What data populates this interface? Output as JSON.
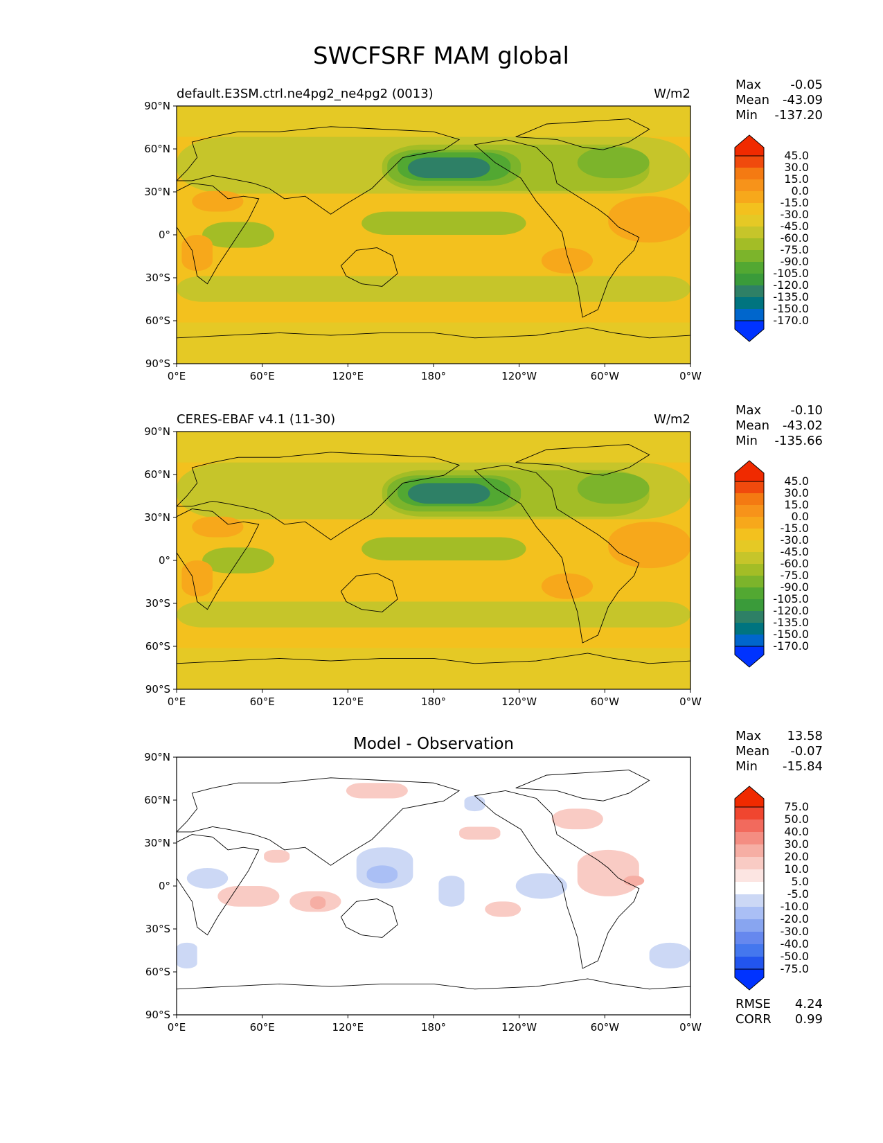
{
  "figure": {
    "title": "SWCFSRF MAM global"
  },
  "colors": {
    "main_levels": [
      "#0033ff",
      "#0066cc",
      "#00747f",
      "#2e8066",
      "#3a9b3a",
      "#52a832",
      "#7cb42b",
      "#a3bd26",
      "#c6c52a",
      "#e5c925",
      "#f3c11e",
      "#f7a81b",
      "#f7931a",
      "#f47a12",
      "#f04a0d",
      "#f02a00"
    ],
    "diff_levels": [
      "#0033ff",
      "#2255ee",
      "#4477ee",
      "#6688ee",
      "#88a5f0",
      "#aabff5",
      "#ccd8f5",
      "#e6ecfa",
      "#ffffff",
      "#fce5e2",
      "#f9cbc4",
      "#f6aea4",
      "#f48d82",
      "#f26a5d",
      "#f0462f",
      "#f02a00"
    ],
    "land_line": "#000000"
  },
  "x_ticks": [
    "0°E",
    "60°E",
    "120°E",
    "180°",
    "120°W",
    "60°W",
    "0°W"
  ],
  "y_ticks": [
    "90°N",
    "60°N",
    "30°N",
    "0°",
    "30°S",
    "60°S",
    "90°S"
  ],
  "panels": [
    {
      "id": "model",
      "left_title": "default.E3SM.ctrl.ne4pg2_ne4pg2 (0013)",
      "center_title": "",
      "units": "W/m2",
      "stats": [
        {
          "label": "Max",
          "value": "-0.05"
        },
        {
          "label": "Mean",
          "value": "-43.09"
        },
        {
          "label": "Min",
          "value": "-137.20"
        }
      ],
      "colorbar": {
        "palette": "main",
        "labels": [
          "45.0",
          "30.0",
          "15.0",
          "0.0",
          "-15.0",
          "-30.0",
          "-45.0",
          "-60.0",
          "-75.0",
          "-90.0",
          "-105.0",
          "-120.0",
          "-135.0",
          "-150.0",
          "-170.0"
        ]
      },
      "extra_stats": []
    },
    {
      "id": "obs",
      "left_title": "CERES-EBAF v4.1 (11-30)",
      "center_title": "",
      "units": "W/m2",
      "stats": [
        {
          "label": "Max",
          "value": "-0.10"
        },
        {
          "label": "Mean",
          "value": "-43.02"
        },
        {
          "label": "Min",
          "value": "-135.66"
        }
      ],
      "colorbar": {
        "palette": "main",
        "labels": [
          "45.0",
          "30.0",
          "15.0",
          "0.0",
          "-15.0",
          "-30.0",
          "-45.0",
          "-60.0",
          "-75.0",
          "-90.0",
          "-105.0",
          "-120.0",
          "-135.0",
          "-150.0",
          "-170.0"
        ]
      },
      "extra_stats": []
    },
    {
      "id": "diff",
      "left_title": "",
      "center_title": "Model - Observation",
      "units": "",
      "stats": [
        {
          "label": "Max",
          "value": "13.58"
        },
        {
          "label": "Mean",
          "value": "-0.07"
        },
        {
          "label": "Min",
          "value": "-15.84"
        }
      ],
      "colorbar": {
        "palette": "diff",
        "labels": [
          "75.0",
          "50.0",
          "40.0",
          "30.0",
          "20.0",
          "10.0",
          "5.0",
          "-5.0",
          "-10.0",
          "-20.0",
          "-30.0",
          "-40.0",
          "-50.0",
          "-75.0"
        ]
      },
      "extra_stats": [
        {
          "label": "RMSE",
          "value": "4.24"
        },
        {
          "label": "CORR",
          "value": "0.99"
        }
      ]
    }
  ]
}
